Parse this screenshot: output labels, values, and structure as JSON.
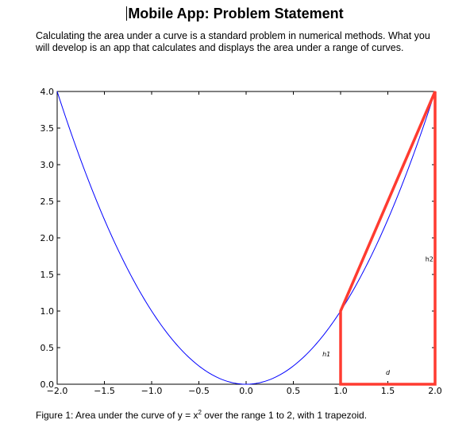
{
  "page": {
    "title": "Mobile App: Problem Statement",
    "intro": "Calculating the area under a curve is a standard problem in numerical methods.  What you will develop is an app that calculates and displays the area under a range of curves.",
    "caption_before": "Figure 1: Area under the curve of y = x",
    "caption_sup": "2",
    "caption_after": " over the range 1 to 2, with 1 trapezoid."
  },
  "chart_data": {
    "type": "line",
    "title": "",
    "xlabel": "",
    "ylabel": "",
    "xlim": [
      -2.0,
      2.0
    ],
    "ylim": [
      0.0,
      4.0
    ],
    "xticks": [
      "−2.0",
      "−1.5",
      "−1.0",
      "−0.5",
      "0.0",
      "0.5",
      "1.0",
      "1.5",
      "2.0"
    ],
    "xtick_values": [
      -2.0,
      -1.5,
      -1.0,
      -0.5,
      0.0,
      0.5,
      1.0,
      1.5,
      2.0
    ],
    "yticks": [
      "0.0",
      "0.5",
      "1.0",
      "1.5",
      "2.0",
      "2.5",
      "3.0",
      "3.5",
      "4.0"
    ],
    "ytick_values": [
      0.0,
      0.5,
      1.0,
      1.5,
      2.0,
      2.5,
      3.0,
      3.5,
      4.0
    ],
    "grid": false,
    "series": [
      {
        "function": "y = x^2",
        "color": "#0000ff",
        "x": [
          -2.0,
          -1.75,
          -1.5,
          -1.25,
          -1.0,
          -0.75,
          -0.5,
          -0.25,
          0.0,
          0.25,
          0.5,
          0.75,
          1.0,
          1.25,
          1.5,
          1.75,
          2.0
        ],
        "y": [
          4.0,
          3.0625,
          2.25,
          1.5625,
          1.0,
          0.5625,
          0.25,
          0.0625,
          0.0,
          0.0625,
          0.25,
          0.5625,
          1.0,
          1.5625,
          2.25,
          3.0625,
          4.0
        ]
      }
    ],
    "trapezoid": {
      "color": "#ff3b30",
      "points": [
        [
          1.0,
          0.0
        ],
        [
          1.0,
          1.0
        ],
        [
          2.0,
          4.0
        ],
        [
          2.0,
          0.0
        ]
      ]
    },
    "annotations": [
      {
        "text": "h1",
        "x": 0.85,
        "y": 0.38,
        "style": "italic"
      },
      {
        "text": "h2",
        "x": 1.94,
        "y": 1.68,
        "style": "normal"
      },
      {
        "text": "d",
        "x": 1.5,
        "y": 0.13,
        "style": "italic"
      }
    ]
  }
}
